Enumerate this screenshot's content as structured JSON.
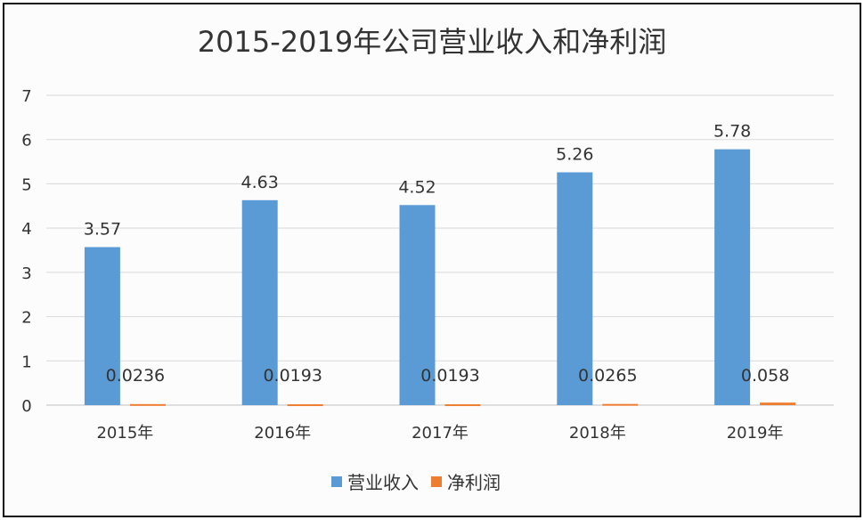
{
  "chart_data": {
    "type": "bar",
    "title": "2015-2019年公司营业收入和净利润",
    "categories": [
      "2015年",
      "2016年",
      "2017年",
      "2018年",
      "2019年"
    ],
    "series": [
      {
        "name": "营业收入",
        "values": [
          3.57,
          4.63,
          4.52,
          5.26,
          5.78
        ],
        "labels": [
          "3.57",
          "4.63",
          "4.52",
          "5.26",
          "5.78"
        ],
        "color": "#5b9bd5"
      },
      {
        "name": "净利润",
        "values": [
          0.0236,
          0.0193,
          0.0193,
          0.0265,
          0.058
        ],
        "labels": [
          "0.0236",
          "0.0193",
          "0.0193",
          "0.0265",
          "0.058"
        ],
        "color": "#ed7d31"
      }
    ],
    "yticks": [
      "0",
      "1",
      "2",
      "3",
      "4",
      "5",
      "6",
      "7"
    ],
    "ylim": [
      0,
      7
    ],
    "grid": true,
    "legend": "bottom"
  }
}
